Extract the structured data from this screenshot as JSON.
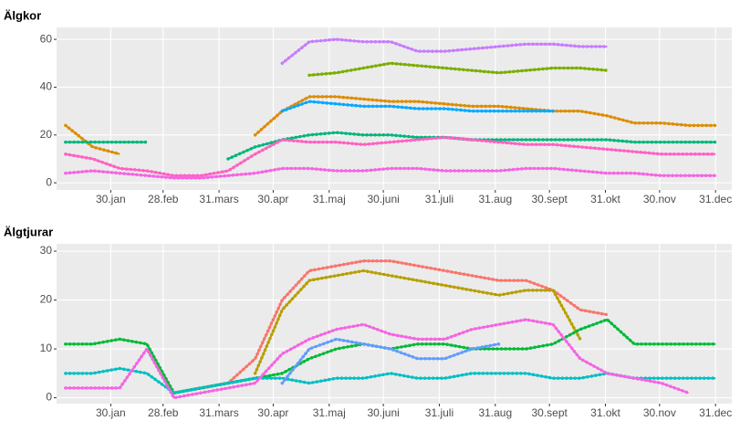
{
  "chart_data": [
    {
      "type": "line",
      "title": "Älgkor",
      "x": [
        5,
        20,
        35,
        50,
        65,
        80,
        95,
        110,
        125,
        140,
        155,
        170,
        185,
        200,
        215,
        230,
        245,
        260,
        275,
        290,
        305,
        320,
        335,
        350,
        365
      ],
      "xlim": [
        0,
        374
      ],
      "xticks": [
        {
          "value": 30,
          "label": "30.jan"
        },
        {
          "value": 59,
          "label": "28.feb"
        },
        {
          "value": 90,
          "label": "31.mars"
        },
        {
          "value": 120,
          "label": "30.apr"
        },
        {
          "value": 151,
          "label": "31.maj"
        },
        {
          "value": 181,
          "label": "30.juni"
        },
        {
          "value": 212,
          "label": "31.juli"
        },
        {
          "value": 243,
          "label": "31.aug"
        },
        {
          "value": 273,
          "label": "30.sept"
        },
        {
          "value": 304,
          "label": "31.okt"
        },
        {
          "value": 334,
          "label": "30.nov"
        },
        {
          "value": 365,
          "label": "31.dec"
        }
      ],
      "ylim": [
        -3,
        65
      ],
      "yticks": [
        0,
        20,
        40,
        60
      ],
      "grid": true,
      "series": [
        {
          "color": "#c77cff",
          "values": [
            null,
            null,
            null,
            null,
            null,
            null,
            null,
            null,
            50,
            59,
            60,
            59,
            59,
            55,
            55,
            56,
            57,
            58,
            58,
            57,
            57,
            null,
            null,
            null,
            null
          ]
        },
        {
          "color": "#7cae00",
          "values": [
            null,
            null,
            null,
            null,
            null,
            null,
            null,
            null,
            null,
            45,
            46,
            48,
            50,
            49,
            48,
            47,
            46,
            47,
            48,
            48,
            47,
            null,
            null,
            null,
            null
          ]
        },
        {
          "color": "#de8c00",
          "values": [
            24,
            15,
            12,
            null,
            null,
            null,
            null,
            20,
            30,
            36,
            36,
            35,
            34,
            34,
            33,
            32,
            32,
            31,
            30,
            30,
            28,
            25,
            25,
            24,
            24
          ]
        },
        {
          "color": "#00b67c",
          "values": [
            17,
            17,
            17,
            17,
            null,
            null,
            10,
            15,
            18,
            20,
            21,
            20,
            20,
            19,
            19,
            18,
            18,
            18,
            18,
            18,
            18,
            17,
            17,
            17,
            17
          ]
        },
        {
          "color": "#00a9ff",
          "values": [
            null,
            null,
            null,
            null,
            null,
            null,
            null,
            null,
            30,
            34,
            33,
            32,
            32,
            31,
            31,
            30,
            30,
            30,
            30,
            null,
            null,
            null,
            null,
            null,
            null
          ]
        },
        {
          "color": "#ff61c3",
          "values": [
            12,
            10,
            6,
            5,
            3,
            3,
            5,
            12,
            18,
            17,
            17,
            16,
            17,
            18,
            19,
            18,
            17,
            16,
            16,
            15,
            14,
            13,
            12,
            12,
            12
          ]
        },
        {
          "color": "#f564e3",
          "values": [
            4,
            5,
            4,
            3,
            2,
            2,
            3,
            4,
            6,
            6,
            5,
            5,
            6,
            6,
            5,
            5,
            5,
            6,
            6,
            5,
            4,
            4,
            3,
            3,
            3
          ]
        }
      ]
    },
    {
      "type": "line",
      "title": "Älgtjurar",
      "x": [
        5,
        20,
        35,
        50,
        65,
        80,
        95,
        110,
        125,
        140,
        155,
        170,
        185,
        200,
        215,
        230,
        245,
        260,
        275,
        290,
        305,
        320,
        335,
        350,
        365
      ],
      "xlim": [
        0,
        374
      ],
      "xticks": [
        {
          "value": 30,
          "label": "30.jan"
        },
        {
          "value": 59,
          "label": "28.feb"
        },
        {
          "value": 90,
          "label": "31.mars"
        },
        {
          "value": 120,
          "label": "30.apr"
        },
        {
          "value": 151,
          "label": "31.maj"
        },
        {
          "value": 181,
          "label": "30.juni"
        },
        {
          "value": 212,
          "label": "31.juli"
        },
        {
          "value": 243,
          "label": "31.aug"
        },
        {
          "value": 273,
          "label": "30.sept"
        },
        {
          "value": 304,
          "label": "31.okt"
        },
        {
          "value": 334,
          "label": "30.nov"
        },
        {
          "value": 365,
          "label": "31.dec"
        }
      ],
      "ylim": [
        -1.2,
        31.5
      ],
      "yticks": [
        0,
        10,
        20,
        30
      ],
      "grid": true,
      "series": [
        {
          "color": "#f8766d",
          "values": [
            null,
            null,
            null,
            null,
            1,
            2,
            3,
            8,
            20,
            26,
            27,
            28,
            28,
            27,
            26,
            25,
            24,
            24,
            22,
            18,
            17,
            null,
            null,
            null,
            null
          ]
        },
        {
          "color": "#b79f00",
          "values": [
            null,
            null,
            null,
            null,
            null,
            null,
            null,
            5,
            18,
            24,
            25,
            26,
            25,
            24,
            23,
            22,
            21,
            22,
            22,
            12,
            null,
            null,
            null,
            null,
            null
          ]
        },
        {
          "color": "#00ba38",
          "values": [
            11,
            11,
            12,
            11,
            1,
            2,
            3,
            4,
            5,
            8,
            10,
            11,
            10,
            11,
            11,
            10,
            10,
            10,
            11,
            14,
            16,
            11,
            11,
            11,
            11
          ]
        },
        {
          "color": "#00bfc4",
          "values": [
            5,
            5,
            6,
            5,
            1,
            2,
            3,
            4,
            4,
            3,
            4,
            4,
            5,
            4,
            4,
            5,
            5,
            5,
            4,
            4,
            5,
            4,
            4,
            4,
            4
          ]
        },
        {
          "color": "#619cff",
          "values": [
            null,
            null,
            null,
            null,
            null,
            null,
            null,
            null,
            3,
            10,
            12,
            11,
            10,
            8,
            8,
            10,
            11,
            null,
            null,
            null,
            null,
            null,
            null,
            null,
            null
          ]
        },
        {
          "color": "#f564e3",
          "values": [
            2,
            2,
            2,
            10,
            0,
            1,
            2,
            3,
            9,
            12,
            14,
            15,
            13,
            12,
            12,
            14,
            15,
            16,
            15,
            8,
            5,
            4,
            3,
            1,
            null
          ]
        }
      ]
    }
  ]
}
